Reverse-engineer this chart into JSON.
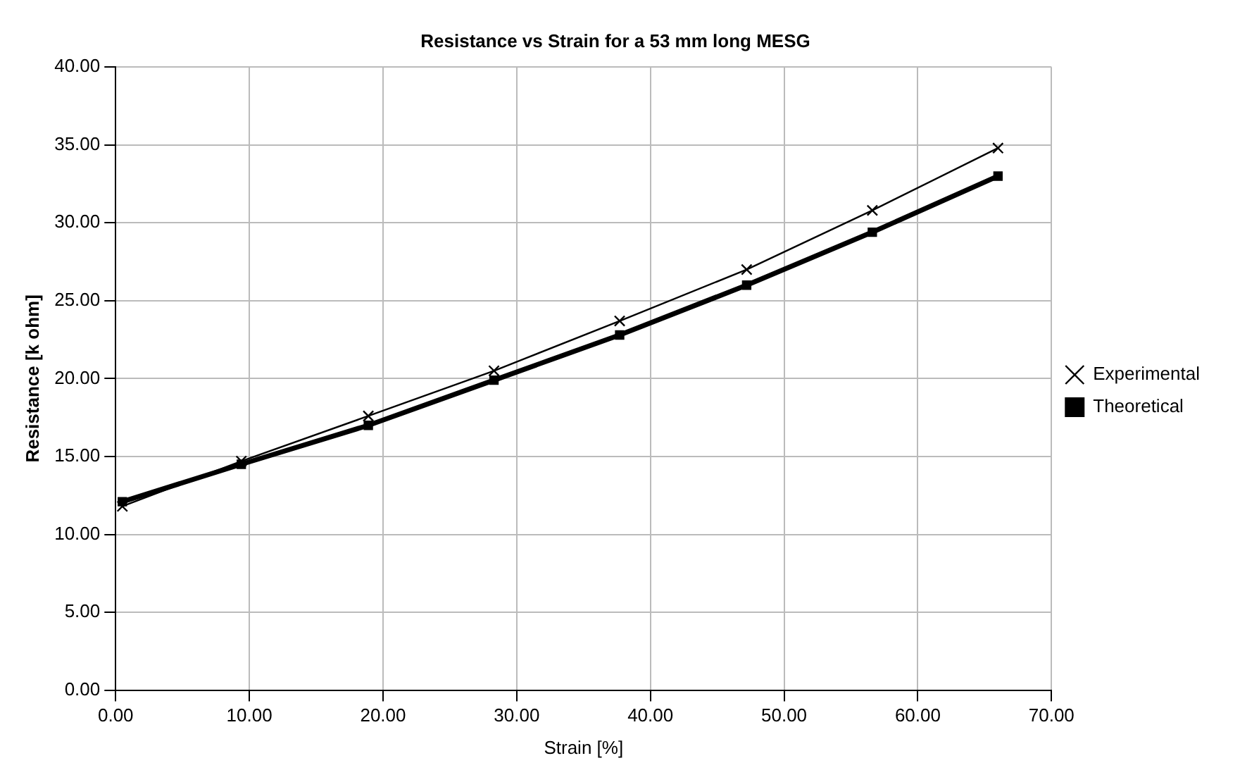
{
  "chart_data": {
    "type": "line",
    "title": "Resistance vs Strain for a 53 mm long MESG",
    "xlabel": "Strain [%]",
    "ylabel": "Resistance [k ohm]",
    "xlim": [
      0,
      70
    ],
    "xticks": [
      {
        "value": 0,
        "label": "0.00"
      },
      {
        "value": 10,
        "label": "10.00"
      },
      {
        "value": 20,
        "label": "20.00"
      },
      {
        "value": 30,
        "label": "30.00"
      },
      {
        "value": 40,
        "label": "40.00"
      },
      {
        "value": 50,
        "label": "50.00"
      },
      {
        "value": 60,
        "label": "60.00"
      },
      {
        "value": 70,
        "label": "70.00"
      }
    ],
    "ylim": [
      0,
      40
    ],
    "yticks": [
      {
        "value": 0,
        "label": "0.00"
      },
      {
        "value": 5,
        "label": "5.00"
      },
      {
        "value": 10,
        "label": "10.00"
      },
      {
        "value": 15,
        "label": "15.00"
      },
      {
        "value": 20,
        "label": "20.00"
      },
      {
        "value": 25,
        "label": "25.00"
      },
      {
        "value": 30,
        "label": "30.00"
      },
      {
        "value": 35,
        "label": "35.00"
      },
      {
        "value": 40,
        "label": "40.00"
      }
    ],
    "x": [
      0.5,
      9.4,
      18.9,
      28.3,
      37.7,
      47.2,
      56.6,
      66.0
    ],
    "series": [
      {
        "name": "Theoretical",
        "color": "#000000",
        "marker": "square",
        "values": [
          12.1,
          14.5,
          17.0,
          19.9,
          22.8,
          26.0,
          29.4,
          33.0
        ]
      },
      {
        "name": "Experimental",
        "color": "#000000",
        "marker": "cross",
        "values": [
          11.8,
          14.7,
          17.6,
          20.5,
          23.7,
          27.0,
          30.8,
          34.8
        ]
      }
    ],
    "grid": true,
    "legend": "right"
  }
}
